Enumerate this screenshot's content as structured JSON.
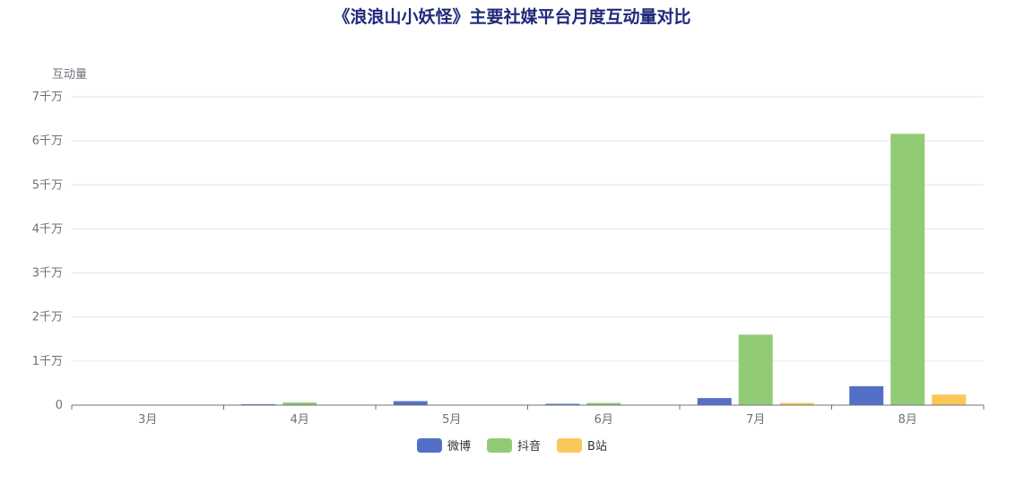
{
  "chart_data": {
    "type": "bar",
    "title": "《浪浪山小妖怪》主要社媒平台月度互动量对比",
    "ylabel": "互动量",
    "categories": [
      "3月",
      "4月",
      "5月",
      "6月",
      "7月",
      "8月"
    ],
    "y_ticks": [
      {
        "value": 0,
        "label": "0"
      },
      {
        "value": 10000000,
        "label": "1千万"
      },
      {
        "value": 20000000,
        "label": "2千万"
      },
      {
        "value": 30000000,
        "label": "3千万"
      },
      {
        "value": 40000000,
        "label": "4千万"
      },
      {
        "value": 50000000,
        "label": "5千万"
      },
      {
        "value": 60000000,
        "label": "6千万"
      },
      {
        "value": 70000000,
        "label": "7千万"
      }
    ],
    "ylim": [
      0,
      70000000
    ],
    "grid": true,
    "legend_position": "bottom-center",
    "series": [
      {
        "name": "微博",
        "color": "#5470c6",
        "values": [
          0,
          200000,
          900000,
          300000,
          1600000,
          4300000
        ]
      },
      {
        "name": "抖音",
        "color": "#91cc75",
        "values": [
          0,
          600000,
          0,
          500000,
          16000000,
          61600000
        ]
      },
      {
        "name": "B站",
        "color": "#fac858",
        "values": [
          0,
          0,
          0,
          0,
          500000,
          2400000
        ]
      }
    ]
  }
}
